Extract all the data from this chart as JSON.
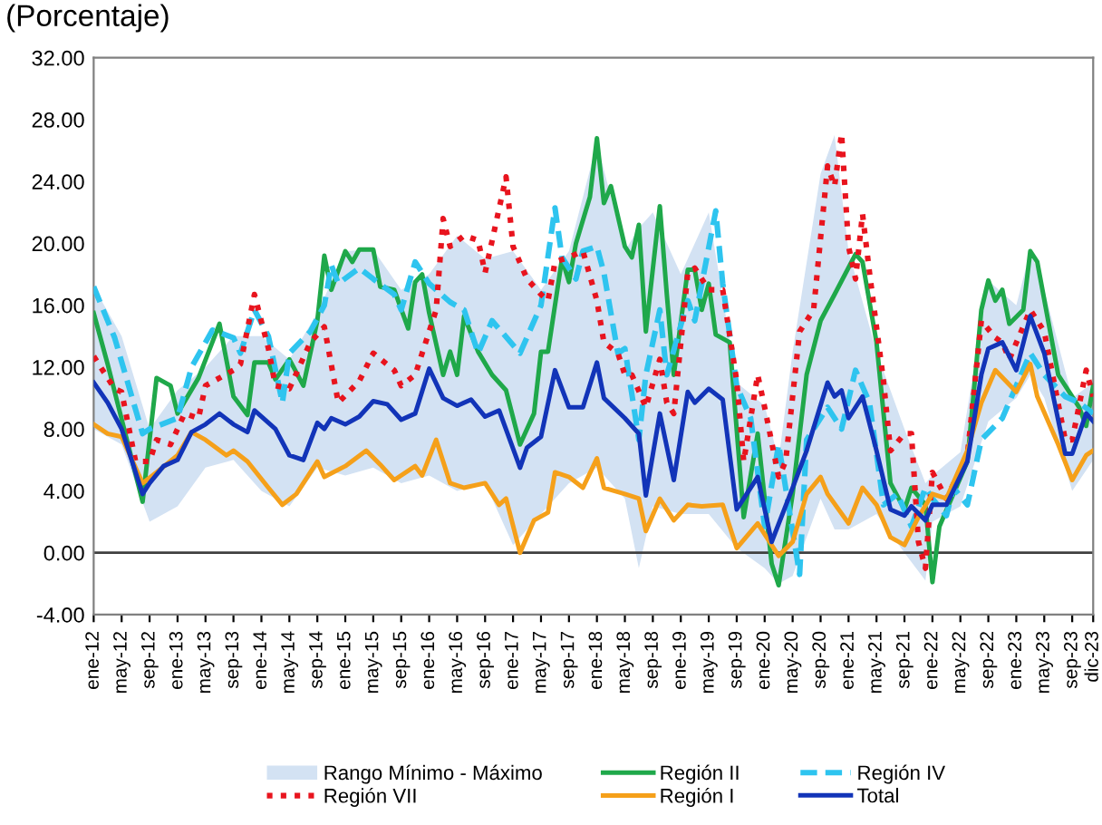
{
  "chart_data": {
    "type": "line",
    "title": "(Porcentaje)",
    "xlim": [
      "2012-01",
      "2023-12"
    ],
    "xticks": [
      {
        "value": "2012-01",
        "label": "ene-12"
      },
      {
        "value": "2012-05",
        "label": "may-12"
      },
      {
        "value": "2012-09",
        "label": "sep-12"
      },
      {
        "value": "2013-01",
        "label": "ene-13"
      },
      {
        "value": "2013-05",
        "label": "may-13"
      },
      {
        "value": "2013-09",
        "label": "sep-13"
      },
      {
        "value": "2014-01",
        "label": "ene-14"
      },
      {
        "value": "2014-05",
        "label": "may-14"
      },
      {
        "value": "2014-09",
        "label": "sep-14"
      },
      {
        "value": "2015-01",
        "label": "ene-15"
      },
      {
        "value": "2015-05",
        "label": "may-15"
      },
      {
        "value": "2015-09",
        "label": "sep-15"
      },
      {
        "value": "2016-01",
        "label": "ene-16"
      },
      {
        "value": "2016-05",
        "label": "may-16"
      },
      {
        "value": "2016-09",
        "label": "sep-16"
      },
      {
        "value": "2017-01",
        "label": "ene-17"
      },
      {
        "value": "2017-05",
        "label": "may-17"
      },
      {
        "value": "2017-09",
        "label": "sep-17"
      },
      {
        "value": "2018-01",
        "label": "ene-18"
      },
      {
        "value": "2018-05",
        "label": "may-18"
      },
      {
        "value": "2018-09",
        "label": "sep-18"
      },
      {
        "value": "2019-01",
        "label": "ene-19"
      },
      {
        "value": "2019-05",
        "label": "may-19"
      },
      {
        "value": "2019-09",
        "label": "sep-19"
      },
      {
        "value": "2020-01",
        "label": "ene-20"
      },
      {
        "value": "2020-05",
        "label": "may-20"
      },
      {
        "value": "2020-09",
        "label": "sep-20"
      },
      {
        "value": "2021-01",
        "label": "ene-21"
      },
      {
        "value": "2021-05",
        "label": "may-21"
      },
      {
        "value": "2021-09",
        "label": "sep-21"
      },
      {
        "value": "2022-01",
        "label": "ene-22"
      },
      {
        "value": "2022-05",
        "label": "may-22"
      },
      {
        "value": "2022-09",
        "label": "sep-22"
      },
      {
        "value": "2023-01",
        "label": "ene-23"
      },
      {
        "value": "2023-05",
        "label": "may-23"
      },
      {
        "value": "2023-09",
        "label": "sep-23"
      },
      {
        "value": "2023-12",
        "label": "dic-23"
      }
    ],
    "ylim": [
      -4,
      32
    ],
    "yticks": [
      {
        "value": -4,
        "label": "-4.00"
      },
      {
        "value": 0,
        "label": "0.00"
      },
      {
        "value": 4,
        "label": "4.00"
      },
      {
        "value": 8,
        "label": "8.00"
      },
      {
        "value": 12,
        "label": "12.00"
      },
      {
        "value": 16,
        "label": "16.00"
      },
      {
        "value": 20,
        "label": "20.00"
      },
      {
        "value": 24,
        "label": "24.00"
      },
      {
        "value": 28,
        "label": "28.00"
      },
      {
        "value": 32,
        "label": "32.00"
      }
    ],
    "ref_lines": [
      {
        "axis": "y",
        "value": 0,
        "color": "#404040"
      }
    ],
    "grid": false,
    "legend": "bottom",
    "series": [
      {
        "name": "Rango Mínimo - Máximo",
        "type": "area",
        "color": "#d3e2f3",
        "x": [
          "2012-01",
          "2012-05",
          "2012-09",
          "2013-01",
          "2013-05",
          "2013-09",
          "2014-01",
          "2014-05",
          "2014-09",
          "2015-01",
          "2015-05",
          "2015-09",
          "2016-01",
          "2016-05",
          "2016-09",
          "2017-01",
          "2017-05",
          "2017-09",
          "2018-01",
          "2018-05",
          "2018-07",
          "2018-09",
          "2019-01",
          "2019-05",
          "2019-09",
          "2020-01",
          "2020-03",
          "2020-05",
          "2020-09",
          "2020-11",
          "2021-01",
          "2021-05",
          "2021-09",
          "2021-12",
          "2022-01",
          "2022-05",
          "2022-09",
          "2023-01",
          "2023-03",
          "2023-05",
          "2023-09",
          "2023-12"
        ],
        "lower": [
          8.0,
          7.0,
          2.0,
          3.0,
          5.5,
          6.0,
          4.0,
          3.0,
          5.5,
          5.0,
          5.5,
          4.5,
          5.0,
          4.0,
          4.5,
          0.5,
          2.5,
          4.5,
          5.5,
          3.5,
          -1.0,
          3.0,
          2.5,
          2.5,
          0.3,
          -1.0,
          -2.0,
          -1.5,
          3.5,
          1.5,
          1.5,
          2.5,
          0.0,
          -1.8,
          2.0,
          3.0,
          8.5,
          10.0,
          11.5,
          10.0,
          4.0,
          6.0
        ],
        "values": [
          null,
          null,
          null,
          null,
          null,
          null,
          null,
          null,
          null,
          null,
          null,
          null,
          null,
          null,
          null,
          null,
          null,
          null,
          null,
          null,
          null,
          null,
          null,
          null,
          null,
          null,
          null,
          null,
          null,
          null,
          null,
          null,
          null,
          null,
          null,
          null,
          null,
          null,
          null,
          null,
          null,
          null
        ],
        "upper": [
          17.2,
          14.0,
          8.0,
          10.5,
          12.0,
          14.0,
          14.0,
          12.5,
          15.5,
          19.5,
          19.6,
          17.0,
          18.0,
          20.5,
          19.0,
          19.5,
          17.0,
          19.5,
          26.5,
          19.5,
          21.0,
          22.0,
          18.0,
          22.0,
          11.0,
          9.5,
          6.0,
          13.0,
          24.5,
          27.0,
          19.5,
          13.0,
          8.0,
          4.5,
          5.0,
          6.5,
          17.6,
          16.0,
          19.5,
          17.0,
          10.0,
          11.0
        ]
      },
      {
        "name": "Región II",
        "color": "#1fa84a",
        "line_style": "solid",
        "x": [
          "2012-01",
          "2012-03",
          "2012-08",
          "2012-10",
          "2012-12",
          "2013-01",
          "2013-04",
          "2013-07",
          "2013-09",
          "2013-11",
          "2013-12",
          "2014-02",
          "2014-03",
          "2014-05",
          "2014-07",
          "2014-09",
          "2014-10",
          "2014-11",
          "2015-01",
          "2015-02",
          "2015-03",
          "2015-05",
          "2015-06",
          "2015-08",
          "2015-10",
          "2015-11",
          "2015-12",
          "2016-01",
          "2016-03",
          "2016-04",
          "2016-05",
          "2016-06",
          "2016-08",
          "2016-10",
          "2016-12",
          "2017-02",
          "2017-04",
          "2017-05",
          "2017-06",
          "2017-08",
          "2017-09",
          "2017-10",
          "2017-12",
          "2018-01",
          "2018-02",
          "2018-03",
          "2018-05",
          "2018-06",
          "2018-07",
          "2018-08",
          "2018-10",
          "2018-11",
          "2018-12",
          "2019-02",
          "2019-03",
          "2019-04",
          "2019-05",
          "2019-06",
          "2019-08",
          "2019-10",
          "2019-12",
          "2020-02",
          "2020-03",
          "2020-05",
          "2020-07",
          "2020-09",
          "2020-11",
          "2021-02",
          "2021-03",
          "2021-05",
          "2021-07",
          "2021-09",
          "2021-10",
          "2021-12",
          "2022-01",
          "2022-02",
          "2022-06",
          "2022-08",
          "2022-09",
          "2022-10",
          "2022-11",
          "2022-12",
          "2023-02",
          "2023-03",
          "2023-04",
          "2023-07",
          "2023-10",
          "2023-11",
          "2023-12"
        ],
        "values": [
          15.5,
          12.2,
          3.3,
          11.3,
          10.8,
          9.0,
          11.3,
          14.8,
          10.1,
          8.9,
          12.3,
          12.3,
          11.2,
          12.5,
          10.8,
          15.0,
          19.2,
          17.0,
          19.5,
          18.8,
          19.6,
          19.6,
          17.2,
          17.0,
          14.5,
          17.5,
          18.0,
          15.5,
          11.5,
          13.0,
          11.5,
          15.3,
          13.0,
          11.5,
          10.5,
          7.0,
          9.0,
          13.0,
          13.0,
          19.0,
          17.5,
          20.0,
          23.0,
          26.8,
          22.6,
          23.7,
          19.8,
          19.1,
          21.2,
          14.3,
          22.4,
          16.7,
          11.5,
          18.3,
          18.3,
          15.7,
          17.4,
          14.1,
          13.6,
          2.3,
          7.7,
          -0.7,
          -2.1,
          3.8,
          11.5,
          15.0,
          16.7,
          19.3,
          18.8,
          13.6,
          4.5,
          2.8,
          4.2,
          3.1,
          -1.9,
          1.7,
          5.9,
          15.7,
          17.6,
          16.3,
          17.0,
          14.8,
          15.7,
          19.5,
          18.8,
          11.5,
          9.4,
          8.2,
          10.8
        ]
      },
      {
        "name": "Región IV",
        "color": "#2ec4ef",
        "line_style": "dashed",
        "x": [
          "2012-01",
          "2012-04",
          "2012-08",
          "2012-09",
          "2013-01",
          "2013-03",
          "2013-06",
          "2013-09",
          "2013-10",
          "2013-12",
          "2014-02",
          "2014-04",
          "2014-05",
          "2014-08",
          "2014-10",
          "2014-11",
          "2014-12",
          "2015-03",
          "2015-05",
          "2015-08",
          "2015-09",
          "2015-11",
          "2016-01",
          "2016-04",
          "2016-06",
          "2016-08",
          "2016-10",
          "2017-02",
          "2017-05",
          "2017-07",
          "2017-08",
          "2017-10",
          "2017-11",
          "2018-01",
          "2018-02",
          "2018-04",
          "2018-05",
          "2018-07",
          "2018-08",
          "2018-10",
          "2018-11",
          "2019-02",
          "2019-03",
          "2019-06",
          "2019-07",
          "2019-09",
          "2019-11",
          "2020-01",
          "2020-03",
          "2020-06",
          "2020-07",
          "2020-10",
          "2020-12",
          "2021-02",
          "2021-04",
          "2021-06",
          "2021-08",
          "2021-10",
          "2021-12",
          "2022-01",
          "2022-03",
          "2022-04",
          "2022-06",
          "2022-08",
          "2022-11",
          "2023-03",
          "2023-05",
          "2023-08",
          "2023-10",
          "2023-12"
        ],
        "values": [
          17.2,
          13.9,
          7.7,
          8.0,
          8.7,
          12.0,
          14.4,
          13.9,
          12.9,
          15.7,
          14.0,
          9.7,
          12.9,
          14.3,
          16.0,
          18.6,
          17.4,
          18.4,
          17.7,
          16.7,
          15.7,
          18.8,
          17.4,
          16.2,
          15.7,
          12.9,
          15.0,
          12.9,
          16.0,
          22.3,
          19.1,
          17.7,
          19.5,
          19.8,
          18.1,
          12.9,
          13.2,
          7.3,
          11.5,
          15.7,
          11.5,
          16.3,
          15.0,
          22.1,
          17.4,
          10.8,
          8.7,
          1.7,
          7.0,
          -1.4,
          7.3,
          9.4,
          8.0,
          11.8,
          9.7,
          3.1,
          3.8,
          1.7,
          4.2,
          3.5,
          2.4,
          4.2,
          3.1,
          7.3,
          8.7,
          12.9,
          11.5,
          10.1,
          9.7,
          9.0
        ]
      },
      {
        "name": "Región VII",
        "color": "#e8141e",
        "line_style": "dotted",
        "x": [
          "2012-01",
          "2012-04",
          "2012-05",
          "2012-07",
          "2012-09",
          "2012-10",
          "2012-12",
          "2013-02",
          "2013-04",
          "2013-05",
          "2013-09",
          "2013-10",
          "2013-12",
          "2014-02",
          "2014-03",
          "2014-05",
          "2014-08",
          "2014-10",
          "2014-12",
          "2015-03",
          "2015-05",
          "2015-08",
          "2015-09",
          "2015-11",
          "2016-02",
          "2016-03",
          "2016-04",
          "2016-06",
          "2016-08",
          "2016-09",
          "2016-12",
          "2017-01",
          "2017-03",
          "2017-05",
          "2017-06",
          "2017-07",
          "2017-09",
          "2017-11",
          "2018-01",
          "2018-02",
          "2018-04",
          "2018-05",
          "2018-06",
          "2018-08",
          "2018-10",
          "2018-11",
          "2018-12",
          "2019-02",
          "2019-03",
          "2019-05",
          "2019-07",
          "2019-09",
          "2019-10",
          "2019-12",
          "2020-01",
          "2020-03",
          "2020-04",
          "2020-06",
          "2020-08",
          "2020-10",
          "2020-11",
          "2020-12",
          "2021-01",
          "2021-02",
          "2021-03",
          "2021-04",
          "2021-06",
          "2021-07",
          "2021-09",
          "2021-10",
          "2021-11",
          "2021-12",
          "2022-01",
          "2022-03",
          "2022-06",
          "2022-08",
          "2022-10",
          "2022-11",
          "2022-12",
          "2023-03",
          "2023-05",
          "2023-08",
          "2023-09",
          "2023-11",
          "2023-12"
        ],
        "values": [
          12.7,
          10.6,
          10.4,
          5.9,
          5.9,
          7.3,
          7.0,
          9.0,
          8.7,
          10.8,
          11.8,
          12.2,
          16.7,
          13.2,
          10.8,
          10.6,
          13.6,
          14.6,
          9.7,
          11.1,
          12.9,
          11.8,
          10.8,
          11.5,
          15.7,
          21.6,
          19.8,
          20.5,
          20.2,
          18.1,
          24.3,
          19.8,
          17.7,
          16.7,
          16.3,
          18.8,
          19.1,
          19.5,
          16.3,
          13.6,
          12.9,
          11.5,
          11.5,
          9.4,
          12.5,
          9.7,
          9.0,
          18.1,
          18.4,
          17.0,
          17.0,
          11.1,
          5.9,
          11.5,
          9.4,
          4.9,
          5.9,
          14.3,
          15.7,
          25.0,
          23.7,
          27.1,
          19.8,
          17.7,
          21.9,
          18.1,
          11.1,
          6.6,
          7.7,
          7.7,
          0.7,
          -1.0,
          5.2,
          3.5,
          6.3,
          15.0,
          13.9,
          13.6,
          12.5,
          15.7,
          14.3,
          7.3,
          7.3,
          11.8,
          10.1
        ]
      },
      {
        "name": "Región I",
        "color": "#f5a01a",
        "line_style": "solid",
        "x": [
          "2012-01",
          "2012-03",
          "2012-05",
          "2012-08",
          "2012-10",
          "2013-01",
          "2013-03",
          "2013-05",
          "2013-08",
          "2013-09",
          "2013-11",
          "2014-02",
          "2014-04",
          "2014-06",
          "2014-09",
          "2014-10",
          "2015-01",
          "2015-04",
          "2015-06",
          "2015-08",
          "2015-11",
          "2015-12",
          "2016-02",
          "2016-04",
          "2016-06",
          "2016-09",
          "2016-11",
          "2016-12",
          "2017-02",
          "2017-04",
          "2017-06",
          "2017-07",
          "2017-09",
          "2017-11",
          "2018-01",
          "2018-02",
          "2018-05",
          "2018-07",
          "2018-08",
          "2018-10",
          "2018-12",
          "2019-02",
          "2019-04",
          "2019-07",
          "2019-09",
          "2019-12",
          "2020-03",
          "2020-05",
          "2020-07",
          "2020-09",
          "2020-10",
          "2021-01",
          "2021-03",
          "2021-05",
          "2021-07",
          "2021-09",
          "2021-11",
          "2022-01",
          "2022-03",
          "2022-06",
          "2022-08",
          "2022-10",
          "2023-01",
          "2023-03",
          "2023-04",
          "2023-07",
          "2023-09",
          "2023-11",
          "2023-12"
        ],
        "values": [
          8.3,
          7.7,
          7.5,
          4.5,
          5.2,
          6.3,
          7.8,
          7.3,
          6.3,
          6.6,
          5.9,
          4.2,
          3.1,
          3.8,
          5.9,
          4.9,
          5.6,
          6.6,
          5.7,
          4.7,
          5.6,
          5.0,
          7.3,
          4.5,
          4.2,
          4.5,
          3.1,
          3.5,
          0.0,
          2.1,
          2.6,
          5.2,
          4.9,
          4.2,
          6.1,
          4.2,
          3.8,
          3.5,
          1.4,
          3.5,
          2.1,
          3.1,
          3.0,
          3.1,
          0.3,
          1.9,
          -0.2,
          0.7,
          3.8,
          4.9,
          3.8,
          1.9,
          4.2,
          3.1,
          1.0,
          0.5,
          2.3,
          3.8,
          3.5,
          6.6,
          9.7,
          11.8,
          10.4,
          12.2,
          10.1,
          7.0,
          4.7,
          6.3,
          6.6
        ]
      },
      {
        "name": "Total",
        "color": "#1234b8",
        "line_style": "solid",
        "x": [
          "2012-01",
          "2012-03",
          "2012-05",
          "2012-08",
          "2012-09",
          "2012-11",
          "2013-01",
          "2013-03",
          "2013-05",
          "2013-07",
          "2013-09",
          "2013-11",
          "2013-12",
          "2014-03",
          "2014-05",
          "2014-07",
          "2014-09",
          "2014-10",
          "2014-11",
          "2015-01",
          "2015-03",
          "2015-05",
          "2015-07",
          "2015-09",
          "2015-11",
          "2016-01",
          "2016-03",
          "2016-05",
          "2016-07",
          "2016-09",
          "2016-11",
          "2017-02",
          "2017-03",
          "2017-05",
          "2017-07",
          "2017-09",
          "2017-11",
          "2018-01",
          "2018-02",
          "2018-05",
          "2018-07",
          "2018-08",
          "2018-10",
          "2018-12",
          "2019-02",
          "2019-03",
          "2019-05",
          "2019-07",
          "2019-09",
          "2019-12",
          "2020-02",
          "2020-05",
          "2020-07",
          "2020-10",
          "2020-11",
          "2020-12",
          "2021-01",
          "2021-03",
          "2021-05",
          "2021-07",
          "2021-09",
          "2021-10",
          "2021-12",
          "2022-01",
          "2022-03",
          "2022-06",
          "2022-08",
          "2022-09",
          "2022-11",
          "2023-01",
          "2023-03",
          "2023-05",
          "2023-08",
          "2023-09",
          "2023-11",
          "2023-12"
        ],
        "values": [
          11.0,
          9.7,
          8.0,
          3.8,
          4.5,
          5.6,
          6.0,
          7.8,
          8.3,
          9.0,
          8.3,
          7.8,
          9.2,
          8.0,
          6.3,
          6.0,
          8.4,
          8.0,
          8.7,
          8.3,
          8.8,
          9.8,
          9.6,
          8.6,
          9.0,
          11.9,
          10.0,
          9.5,
          9.9,
          8.8,
          9.2,
          5.5,
          6.8,
          7.5,
          11.8,
          9.4,
          9.4,
          12.3,
          10.0,
          8.7,
          7.7,
          3.7,
          9.0,
          4.7,
          10.4,
          9.7,
          10.6,
          9.9,
          2.8,
          4.9,
          0.7,
          4.2,
          6.6,
          11.0,
          10.1,
          10.5,
          8.7,
          10.1,
          6.6,
          2.8,
          2.4,
          3.0,
          2.1,
          3.1,
          3.1,
          5.9,
          11.5,
          13.2,
          13.6,
          11.8,
          15.3,
          12.9,
          6.4,
          6.4,
          9.0,
          8.5
        ]
      }
    ]
  }
}
